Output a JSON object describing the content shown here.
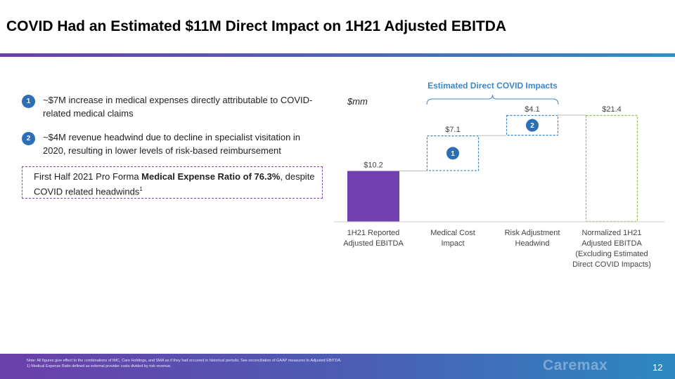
{
  "header": {
    "title": "COVID Had an Estimated $11M Direct Impact on 1H21 Adjusted EBITDA"
  },
  "bullets": [
    {
      "num": "1",
      "text": "~$7M increase in medical expenses directly attributable to COVID-related medical claims"
    },
    {
      "num": "2",
      "text": "~$4M revenue headwind due to decline in specialist visitation in 2020, resulting in lower levels of risk-based reimbursement"
    }
  ],
  "mer_callout": {
    "prefix": "First Half 2021 Pro Forma ",
    "bold": "Medical Expense Ratio of 76.3%",
    "suffix": ", despite COVID related headwinds",
    "sup": "1"
  },
  "chart_data": {
    "type": "bar",
    "subtype": "waterfall",
    "unit_label": "$mm",
    "bracket_label": "Estimated Direct COVID Impacts",
    "categories": [
      "1H21 Reported Adjusted EBITDA",
      "Medical Cost Impact",
      "Risk Adjustment Headwind",
      "Normalized 1H21 Adjusted EBITDA (Excluding Estimated Direct COVID Impacts)"
    ],
    "category_lines": [
      [
        "1H21 Reported",
        "Adjusted EBITDA"
      ],
      [
        "Medical Cost",
        "Impact"
      ],
      [
        "Risk Adjustment",
        "Headwind"
      ],
      [
        "Normalized 1H21",
        "Adjusted EBITDA",
        "(Excluding Estimated",
        "Direct COVID Impacts)"
      ]
    ],
    "values": [
      10.2,
      7.1,
      4.1,
      21.4
    ],
    "value_labels": [
      "$10.2",
      "$7.1",
      "$4.1",
      "$21.4"
    ],
    "markers": [
      "",
      "1",
      "2",
      ""
    ],
    "styles": [
      "solid",
      "dashed",
      "dashed",
      "dashed"
    ],
    "colors": [
      "#7340b0",
      "#3d86c6",
      "#3d86c6",
      "#8bc34a"
    ],
    "ylim": [
      0,
      21.4
    ],
    "grid": false
  },
  "footer": {
    "note": "Note: All figures give effect to the combinations of IMC, Care Holdings, and SMA as if they had occurred in historical periods; See reconciliation of GAAP measures to Adjusted EBITDA.",
    "footnote1": "1)    Medical Expense Ratio defined as external provider costs divided by risk revenue.",
    "logo": "Caremax",
    "page": "12"
  }
}
